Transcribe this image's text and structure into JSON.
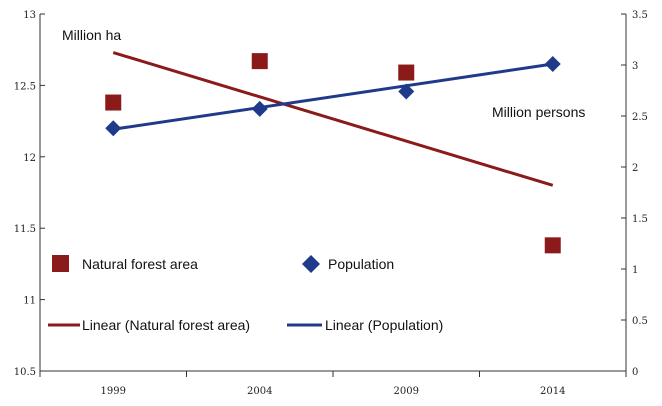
{
  "chart_data": {
    "type": "scatter",
    "categories": [
      "1999",
      "2004",
      "2009",
      "2014"
    ],
    "left_axis": {
      "label": "Million ha",
      "min": 10.5,
      "max": 13,
      "ticks": [
        "10.5",
        "11",
        "11.5",
        "12",
        "12.5",
        "13"
      ]
    },
    "right_axis": {
      "label": "Million persons",
      "min": 0,
      "max": 3.5,
      "ticks": [
        "0",
        "0.5",
        "1",
        "1.5",
        "2",
        "2.5",
        "3",
        "3.5"
      ]
    },
    "series": [
      {
        "name": "Natural forest area",
        "axis": "left",
        "marker": "square",
        "color": "#8b1a1a",
        "values": [
          12.38,
          12.67,
          12.59,
          11.38
        ]
      },
      {
        "name": "Population",
        "axis": "right",
        "marker": "diamond",
        "color": "#1f3a8a",
        "values": [
          2.38,
          2.57,
          2.74,
          3.01
        ]
      }
    ],
    "trendlines": [
      {
        "name": "Linear (Natural forest area)",
        "axis": "left",
        "color": "#8b1a1a",
        "start": 12.73,
        "end": 11.8
      },
      {
        "name": "Linear (Population)",
        "axis": "right",
        "color": "#1f3a8a",
        "start": 2.37,
        "end": 3.01
      }
    ],
    "legend": {
      "position": "inside-bottom-left",
      "entries": [
        "Natural forest area",
        "Population",
        "Linear (Natural forest area)",
        "Linear (Population)"
      ]
    }
  }
}
